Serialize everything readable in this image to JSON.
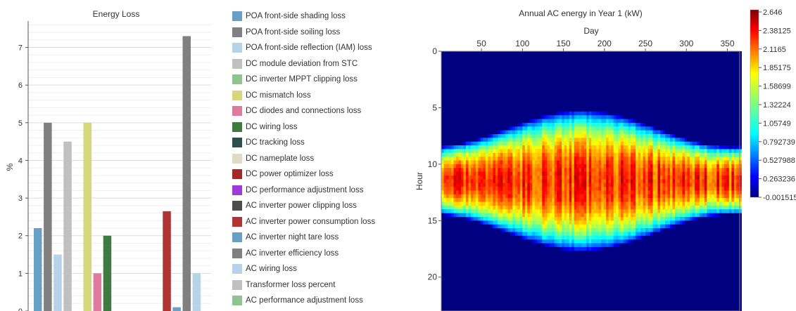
{
  "chart_data": [
    {
      "type": "bar",
      "title": "Energy Loss",
      "ylabel": "%",
      "xlabel": "",
      "ylim": [
        0,
        7.7
      ],
      "yticks": [
        0,
        1,
        2,
        3,
        4,
        5,
        6,
        7
      ],
      "grid": true,
      "legend_position": "right",
      "categories": [
        "POA front-side shading loss",
        "POA front-side soiling loss",
        "POA front-side reflection (IAM) loss",
        "DC module deviation from STC",
        "DC inverter MPPT clipping loss",
        "DC mismatch loss",
        "DC diodes and connections loss",
        "DC wiring loss",
        "DC tracking loss",
        "DC nameplate loss",
        "DC power optimizer loss",
        "DC performance adjustment loss",
        "AC inverter power clipping loss",
        "AC inverter power consumption loss",
        "AC inverter night tare loss",
        "AC inverter efficiency loss",
        "AC wiring loss",
        "Transformer loss percent",
        "AC performance adjustment loss"
      ],
      "values": [
        2.2,
        5.0,
        1.5,
        4.5,
        0,
        5.0,
        1.0,
        2.0,
        0,
        0,
        0,
        0,
        0,
        2.65,
        0.1,
        7.3,
        1.0,
        0,
        0
      ],
      "colors": [
        "#6a9fc5",
        "#808080",
        "#b6d3e8",
        "#c0c0c0",
        "#8fc48f",
        "#d5d77a",
        "#df7a9e",
        "#3f7a3f",
        "#2f4f4f",
        "#dedcc6",
        "#a02a2a",
        "#a03ad6",
        "#4d4d4d",
        "#b03434",
        "#6a9fc5",
        "#808080",
        "#b6d3e8",
        "#c0c0c0",
        "#8fc48f"
      ]
    },
    {
      "type": "heatmap",
      "title": "Annual AC energy in Year 1 (kW)",
      "xlabel": "Day",
      "ylabel": "Hour",
      "xlim": [
        1,
        365
      ],
      "ylim": [
        0,
        23
      ],
      "xticks": [
        50,
        100,
        150,
        200,
        250,
        300,
        350
      ],
      "yticks": [
        0,
        5,
        10,
        15,
        20
      ],
      "colorbar": {
        "min": -0.001515,
        "max": 2.646,
        "tick_labels": [
          "2.646",
          "2.38125",
          "2.1165",
          "1.85175",
          "1.58699",
          "1.32224",
          "1.05749",
          "0.792739",
          "0.527988",
          "0.263236",
          "-0.001515"
        ],
        "colormap": "jet"
      }
    }
  ]
}
